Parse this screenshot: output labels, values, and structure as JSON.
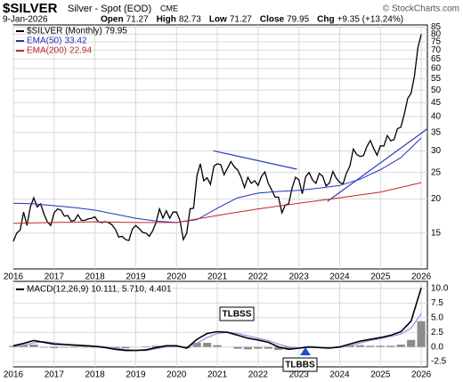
{
  "header": {
    "symbol": "$SILVER",
    "name": "Silver - Spot (EOD)",
    "exchange": "CME",
    "source": "© StockCharts.com",
    "date": "9-Jan-2026",
    "quote": [
      {
        "label": "Open",
        "value": 71.27
      },
      {
        "label": "High",
        "value": 82.73
      },
      {
        "label": "Low",
        "value": 71.27
      },
      {
        "label": "Close",
        "value": 79.95
      },
      {
        "label": "Chg",
        "value": "+9.35 (+13.24%)"
      }
    ]
  },
  "chart_data": [
    {
      "type": "line",
      "log_scale": true,
      "grid": true,
      "xlim": [
        2016,
        2026.15
      ],
      "ylim": [
        11.1,
        86.5
      ],
      "xticks": [
        2016,
        2017,
        2018,
        2019,
        2020,
        2021,
        2022,
        2023,
        2024,
        2025,
        2026
      ],
      "yticks": [
        15,
        20,
        25,
        30,
        35,
        40,
        45,
        50,
        55,
        60,
        65,
        70,
        75,
        80,
        85
      ],
      "series": [
        {
          "name": "$SILVER (Monthly)",
          "last": 79.95,
          "color": "#000000",
          "x": [
            2016,
            2016.083,
            2016.167,
            2016.25,
            2016.333,
            2016.417,
            2016.5,
            2016.583,
            2016.667,
            2016.75,
            2016.833,
            2016.917,
            2017,
            2017.083,
            2017.167,
            2017.25,
            2017.333,
            2017.417,
            2017.5,
            2017.583,
            2017.667,
            2017.75,
            2017.833,
            2017.917,
            2018,
            2018.083,
            2018.167,
            2018.25,
            2018.333,
            2018.417,
            2018.5,
            2018.583,
            2018.667,
            2018.75,
            2018.833,
            2018.917,
            2019,
            2019.083,
            2019.167,
            2019.25,
            2019.333,
            2019.417,
            2019.5,
            2019.583,
            2019.667,
            2019.75,
            2019.833,
            2019.917,
            2020,
            2020.083,
            2020.167,
            2020.25,
            2020.333,
            2020.417,
            2020.5,
            2020.583,
            2020.667,
            2020.75,
            2020.833,
            2020.917,
            2021,
            2021.083,
            2021.167,
            2021.25,
            2021.333,
            2021.417,
            2021.5,
            2021.583,
            2021.667,
            2021.75,
            2021.833,
            2021.917,
            2022,
            2022.083,
            2022.167,
            2022.25,
            2022.333,
            2022.417,
            2022.5,
            2022.583,
            2022.667,
            2022.75,
            2022.833,
            2022.917,
            2023,
            2023.083,
            2023.167,
            2023.25,
            2023.333,
            2023.417,
            2023.5,
            2023.583,
            2023.667,
            2023.75,
            2023.833,
            2023.917,
            2024,
            2024.083,
            2024.167,
            2024.25,
            2024.333,
            2024.417,
            2024.5,
            2024.583,
            2024.667,
            2024.75,
            2024.833,
            2024.917,
            2025,
            2025.083,
            2025.167,
            2025.25,
            2025.333,
            2025.417,
            2025.5,
            2025.583,
            2025.667,
            2025.75,
            2025.833,
            2025.917,
            2026
          ],
          "values": [
            14.0,
            15.0,
            15.4,
            17.9,
            16.0,
            18.7,
            20.2,
            18.7,
            19.2,
            17.6,
            16.5,
            16.0,
            17.8,
            18.4,
            18.2,
            17.3,
            17.4,
            16.6,
            16.7,
            17.5,
            16.7,
            16.7,
            16.9,
            17.0,
            17.2,
            16.5,
            16.4,
            16.5,
            16.4,
            16.1,
            15.5,
            14.5,
            14.6,
            14.2,
            14.1,
            15.5,
            16.0,
            15.6,
            15.1,
            15.0,
            14.6,
            15.3,
            16.4,
            18.4,
            17.0,
            18.1,
            17.0,
            17.9,
            17.9,
            16.7,
            14.2,
            15.0,
            18.4,
            18.5,
            24.3,
            26.9,
            23.3,
            23.9,
            22.6,
            26.4,
            26.9,
            26.7,
            24.5,
            25.9,
            27.4,
            26.2,
            25.5,
            24.0,
            22.0,
            24.0,
            22.8,
            23.3,
            22.4,
            24.2,
            25.1,
            22.8,
            21.6,
            20.3,
            20.3,
            17.8,
            19.0,
            19.2,
            21.9,
            24.0,
            23.5,
            20.9,
            24.1,
            25.0,
            23.5,
            22.8,
            24.8,
            24.2,
            22.3,
            22.9,
            25.2,
            23.8,
            23.0,
            22.7,
            24.9,
            26.4,
            30.4,
            29.1,
            28.6,
            28.8,
            31.1,
            32.7,
            30.6,
            28.9,
            31.3,
            31.2,
            34.1,
            32.6,
            33.0,
            36.1,
            36.6,
            40.7,
            46.6,
            48.7,
            56.4,
            71.3,
            79.95
          ]
        },
        {
          "name": "EMA(50)",
          "last": 33.42,
          "color": "#2233bb",
          "x": [
            2016,
            2016.5,
            2017,
            2017.5,
            2018,
            2018.5,
            2019,
            2019.5,
            2020,
            2020.5,
            2021,
            2021.5,
            2022,
            2022.5,
            2023,
            2023.5,
            2024,
            2024.5,
            2025,
            2025.5,
            2026
          ],
          "values": [
            19.3,
            19.2,
            18.9,
            18.6,
            18.2,
            17.6,
            17.0,
            16.6,
            16.4,
            16.8,
            18.5,
            20.2,
            21.0,
            21.3,
            21.5,
            21.9,
            22.4,
            23.6,
            25.6,
            28.3,
            33.42
          ]
        },
        {
          "name": "EMA(200)",
          "last": 22.94,
          "color": "#c0272d",
          "x": [
            2016,
            2017,
            2018,
            2019,
            2020,
            2021,
            2022,
            2023,
            2024,
            2025,
            2026
          ],
          "values": [
            16.3,
            16.4,
            16.5,
            16.4,
            16.4,
            17.4,
            18.4,
            19.3,
            20.2,
            21.2,
            22.94
          ]
        }
      ],
      "trendlines": [
        {
          "color": "#2a3fb5",
          "x": [
            2020.9,
            2022.95
          ],
          "values": [
            30.0,
            25.7
          ]
        },
        {
          "color": "#2a3fb5",
          "x": [
            2023.7,
            2026.15
          ],
          "values": [
            19.6,
            36.1
          ]
        }
      ]
    },
    {
      "type": "macd",
      "legend": "MACD(12,26,9) 10.111, 5.710, 4.401",
      "grid": true,
      "xlim": [
        2016,
        2026.15
      ],
      "ylim": [
        -3.4,
        11.2
      ],
      "xticks": [
        2016,
        2017,
        2018,
        2019,
        2020,
        2021,
        2022,
        2023,
        2024,
        2025,
        2026
      ],
      "yticks": [
        {
          "value": -2.5,
          "label": "-2.5"
        },
        {
          "value": 0,
          "label": "0.0"
        },
        {
          "value": 2.5,
          "label": "2.5"
        },
        {
          "value": 5,
          "label": "5.0"
        },
        {
          "value": 7.5,
          "label": "7.5"
        },
        {
          "value": 10,
          "label": "10.0"
        }
      ],
      "x": [
        2016,
        2016.25,
        2016.5,
        2016.75,
        2017,
        2017.25,
        2017.5,
        2017.75,
        2018,
        2018.25,
        2018.5,
        2018.75,
        2019,
        2019.25,
        2019.5,
        2019.75,
        2020,
        2020.25,
        2020.5,
        2020.75,
        2021,
        2021.25,
        2021.5,
        2021.75,
        2022,
        2022.25,
        2022.5,
        2022.75,
        2023,
        2023.25,
        2023.5,
        2023.75,
        2024,
        2024.25,
        2024.5,
        2024.75,
        2025,
        2025.25,
        2025.5,
        2025.75,
        2026
      ],
      "series": [
        {
          "kind": "histogram",
          "color": "#8c8c8c",
          "values": [
            0.2,
            0.3,
            0.4,
            -0.1,
            -0.2,
            -0.1,
            -0.1,
            -0.1,
            -0.1,
            -0.1,
            -0.2,
            -0.2,
            0.0,
            0.1,
            0.2,
            0.2,
            0.1,
            -0.2,
            0.7,
            0.7,
            0.3,
            0.0,
            -0.3,
            -0.4,
            -0.3,
            -0.3,
            -0.5,
            -0.4,
            0.0,
            0.1,
            0.0,
            -0.1,
            0.1,
            0.3,
            0.3,
            0.2,
            0.2,
            0.2,
            0.4,
            1.2,
            4.401
          ]
        },
        {
          "kind": "line",
          "color": "#9090e8",
          "values": [
            0.0,
            0.3,
            0.7,
            0.9,
            0.7,
            0.5,
            0.4,
            0.3,
            0.2,
            0.0,
            -0.2,
            -0.4,
            -0.6,
            -0.6,
            -0.3,
            0.0,
            0.1,
            0.0,
            0.6,
            1.6,
            2.3,
            2.5,
            2.3,
            1.9,
            1.5,
            1.1,
            0.5,
            0.0,
            -0.2,
            -0.1,
            -0.1,
            -0.1,
            -0.1,
            0.2,
            0.7,
            1.1,
            1.4,
            1.8,
            2.2,
            3.2,
            5.71
          ]
        },
        {
          "kind": "line",
          "color": "#000000",
          "values": [
            0.2,
            0.6,
            1.1,
            0.8,
            0.5,
            0.4,
            0.3,
            0.2,
            0.1,
            -0.1,
            -0.4,
            -0.6,
            -0.6,
            -0.5,
            -0.1,
            0.2,
            0.2,
            -0.2,
            1.3,
            2.3,
            2.6,
            2.5,
            2.0,
            1.5,
            1.2,
            0.8,
            0.0,
            -0.4,
            -0.2,
            0.0,
            -0.1,
            -0.2,
            0.0,
            0.5,
            1.0,
            1.3,
            1.6,
            2.0,
            2.6,
            4.4,
            10.111
          ]
        }
      ],
      "annotations": [
        "TLBSS",
        "TLBBS"
      ]
    }
  ]
}
